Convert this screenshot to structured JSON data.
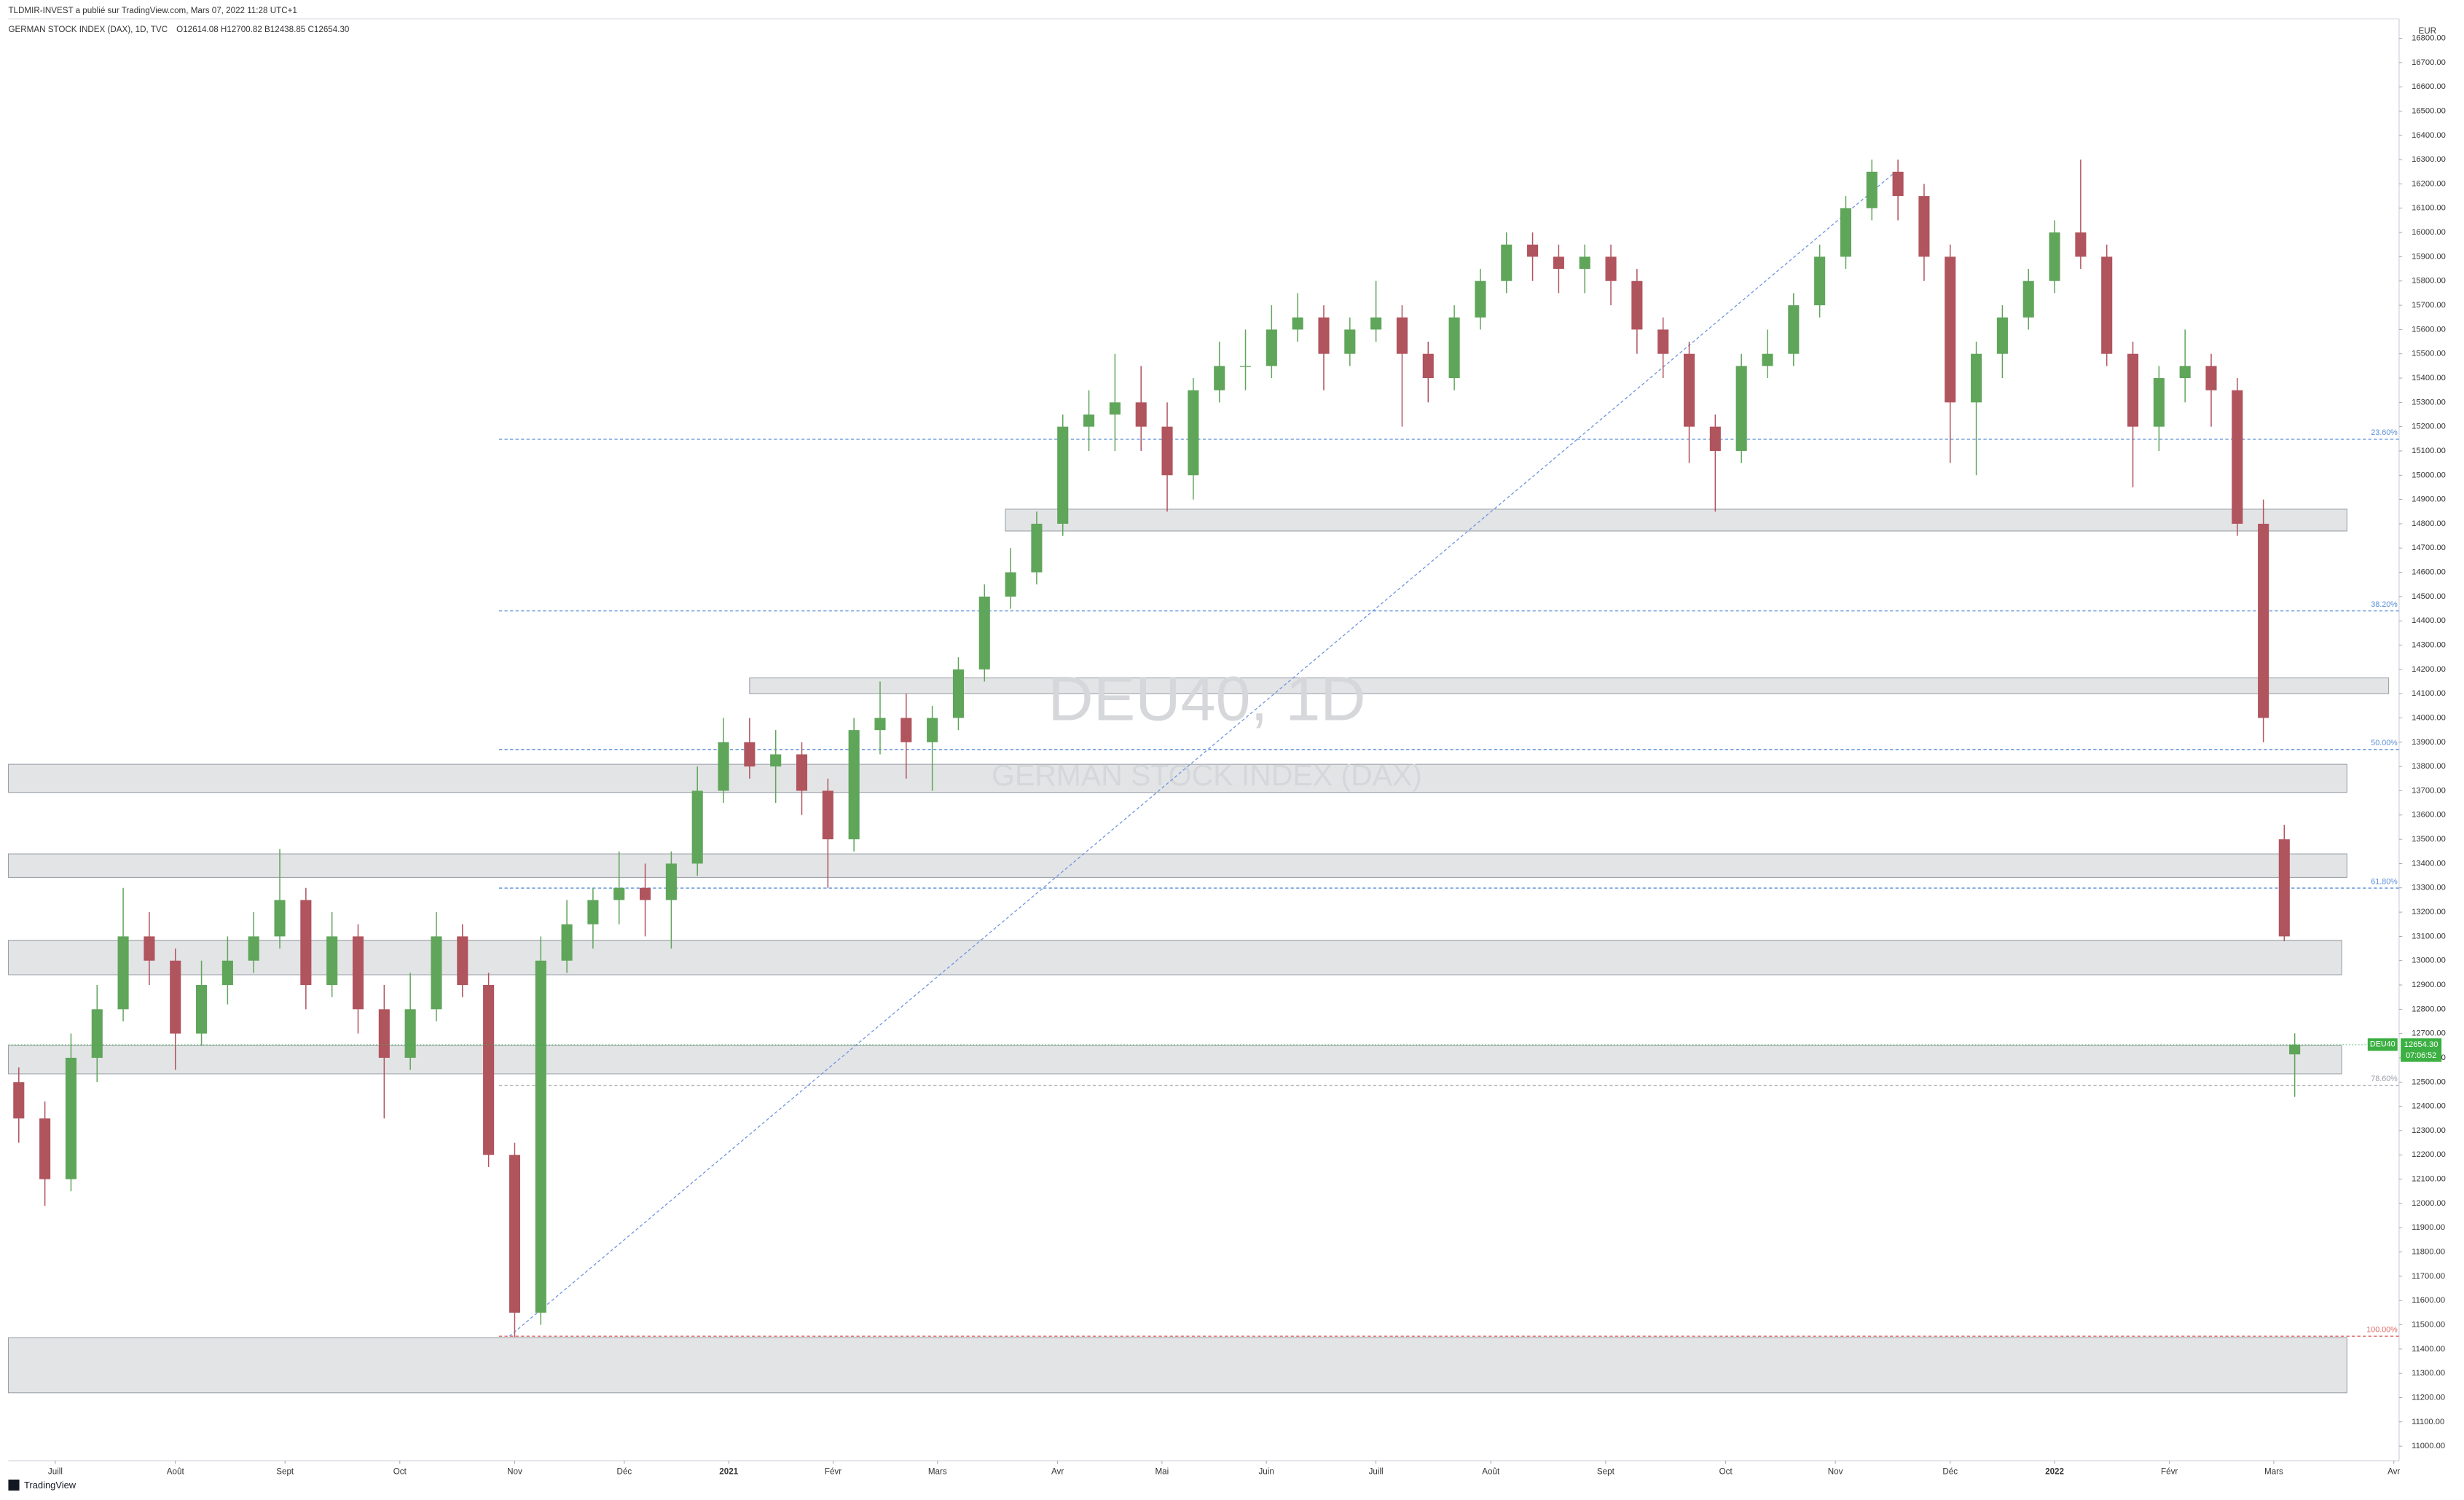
{
  "chart_data": {
    "type": "candlestick",
    "publisher_note": "TLDMIR-INVEST a publié sur TradingView.com, Mars 07, 2022 11:28 UTC+1",
    "title": "GERMAN STOCK INDEX (DAX), 1D, TVC",
    "ohlc_text": "O12614.08 H12700.82 B12438.85 C12654.30",
    "watermark": "DEU40, 1D",
    "watermark_subtitle": "GERMAN STOCK INDEX (DAX)",
    "currency": "EUR",
    "brand": "TradingView",
    "up_color": "#5fa55a",
    "down_color": "#b0545e",
    "zone_color": "#e3e4e6",
    "xlim": [
      0,
      458
    ],
    "ylim": [
      10940,
      16880
    ],
    "xticks": [
      {
        "value": 9,
        "label": "Juill"
      },
      {
        "value": 32,
        "label": "Août"
      },
      {
        "value": 53,
        "label": "Sept"
      },
      {
        "value": 75,
        "label": "Oct"
      },
      {
        "value": 97,
        "label": "Nov"
      },
      {
        "value": 118,
        "label": "Déc"
      },
      {
        "value": 138,
        "label": "2021"
      },
      {
        "value": 158,
        "label": "Févr"
      },
      {
        "value": 178,
        "label": "Mars"
      },
      {
        "value": 201,
        "label": "Avr"
      },
      {
        "value": 221,
        "label": "Mai"
      },
      {
        "value": 241,
        "label": "Juin"
      },
      {
        "value": 262,
        "label": "Juill"
      },
      {
        "value": 284,
        "label": "Août"
      },
      {
        "value": 306,
        "label": "Sept"
      },
      {
        "value": 329,
        "label": "Oct"
      },
      {
        "value": 350,
        "label": "Nov"
      },
      {
        "value": 372,
        "label": "Déc"
      },
      {
        "value": 392,
        "label": "2022"
      },
      {
        "value": 414,
        "label": "Févr"
      },
      {
        "value": 434,
        "label": "Mars"
      },
      {
        "value": 457,
        "label": "Avr"
      }
    ],
    "yticks": [
      {
        "value": 11000,
        "label": "11000.00"
      },
      {
        "value": 11100,
        "label": "11100.00"
      },
      {
        "value": 11200,
        "label": "11200.00"
      },
      {
        "value": 11300,
        "label": "11300.00"
      },
      {
        "value": 11400,
        "label": "11400.00"
      },
      {
        "value": 11500,
        "label": "11500.00"
      },
      {
        "value": 11600,
        "label": "11600.00"
      },
      {
        "value": 11700,
        "label": "11700.00"
      },
      {
        "value": 11800,
        "label": "11800.00"
      },
      {
        "value": 11900,
        "label": "11900.00"
      },
      {
        "value": 12000,
        "label": "12000.00"
      },
      {
        "value": 12100,
        "label": "12100.00"
      },
      {
        "value": 12200,
        "label": "12200.00"
      },
      {
        "value": 12300,
        "label": "12300.00"
      },
      {
        "value": 12400,
        "label": "12400.00"
      },
      {
        "value": 12500,
        "label": "12500.00"
      },
      {
        "value": 12600,
        "label": "12600.00"
      },
      {
        "value": 12700,
        "label": "12700.00"
      },
      {
        "value": 12800,
        "label": "12800.00"
      },
      {
        "value": 12900,
        "label": "12900.00"
      },
      {
        "value": 13000,
        "label": "13000.00"
      },
      {
        "value": 13100,
        "label": "13100.00"
      },
      {
        "value": 13200,
        "label": "13200.00"
      },
      {
        "value": 13300,
        "label": "13300.00"
      },
      {
        "value": 13400,
        "label": "13400.00"
      },
      {
        "value": 13500,
        "label": "13500.00"
      },
      {
        "value": 13600,
        "label": "13600.00"
      },
      {
        "value": 13700,
        "label": "13700.00"
      },
      {
        "value": 13800,
        "label": "13800.00"
      },
      {
        "value": 13900,
        "label": "13900.00"
      },
      {
        "value": 14000,
        "label": "14000.00"
      },
      {
        "value": 14100,
        "label": "14100.00"
      },
      {
        "value": 14200,
        "label": "14200.00"
      },
      {
        "value": 14300,
        "label": "14300.00"
      },
      {
        "value": 14400,
        "label": "14400.00"
      },
      {
        "value": 14500,
        "label": "14500.00"
      },
      {
        "value": 14600,
        "label": "14600.00"
      },
      {
        "value": 14700,
        "label": "14700.00"
      },
      {
        "value": 14800,
        "label": "14800.00"
      },
      {
        "value": 14900,
        "label": "14900.00"
      },
      {
        "value": 15000,
        "label": "15000.00"
      },
      {
        "value": 15100,
        "label": "15100.00"
      },
      {
        "value": 15200,
        "label": "15200.00"
      },
      {
        "value": 15300,
        "label": "15300.00"
      },
      {
        "value": 15400,
        "label": "15400.00"
      },
      {
        "value": 15500,
        "label": "15500.00"
      },
      {
        "value": 15600,
        "label": "15600.00"
      },
      {
        "value": 15700,
        "label": "15700.00"
      },
      {
        "value": 15800,
        "label": "15800.00"
      },
      {
        "value": 15900,
        "label": "15900.00"
      },
      {
        "value": 16000,
        "label": "16000.00"
      },
      {
        "value": 16100,
        "label": "16100.00"
      },
      {
        "value": 16200,
        "label": "16200.00"
      },
      {
        "value": 16300,
        "label": "16300.00"
      },
      {
        "value": 16400,
        "label": "16400.00"
      },
      {
        "value": 16500,
        "label": "16500.00"
      },
      {
        "value": 16600,
        "label": "16600.00"
      },
      {
        "value": 16700,
        "label": "16700.00"
      },
      {
        "value": 16800,
        "label": "16800.00"
      }
    ],
    "x": [
      2,
      7,
      12,
      17,
      22,
      27,
      32,
      37,
      42,
      47,
      52,
      57,
      62,
      67,
      72,
      77,
      82,
      87,
      92,
      97,
      102,
      107,
      112,
      117,
      122,
      127,
      132,
      137,
      142,
      147,
      152,
      157,
      162,
      167,
      172,
      177,
      182,
      187,
      192,
      197,
      202,
      207,
      212,
      217,
      222,
      227,
      232,
      237,
      242,
      247,
      252,
      257,
      262,
      267,
      272,
      277,
      282,
      287,
      292,
      297,
      302,
      307,
      312,
      317,
      322,
      327,
      332,
      337,
      342,
      347,
      352,
      357,
      362,
      367,
      372,
      377,
      382,
      387,
      392,
      397,
      402,
      407,
      412,
      417,
      422,
      427,
      432,
      436,
      438
    ],
    "open": [
      12500,
      12350,
      12100,
      12600,
      12800,
      13100,
      13000,
      12700,
      12900,
      13000,
      13100,
      13250,
      12900,
      13100,
      12800,
      12600,
      12800,
      13100,
      12900,
      12200,
      11550,
      13000,
      13150,
      13250,
      13300,
      13250,
      13400,
      13700,
      13900,
      13800,
      13850,
      13700,
      13500,
      13950,
      14000,
      13900,
      14000,
      14200,
      14500,
      14600,
      14800,
      15200,
      15250,
      15300,
      15200,
      15000,
      15350,
      15450,
      15450,
      15600,
      15650,
      15500,
      15600,
      15650,
      15500,
      15400,
      15650,
      15800,
      15950,
      15900,
      15850,
      15900,
      15800,
      15600,
      15500,
      15200,
      15100,
      15450,
      15500,
      15700,
      15900,
      16100,
      16250,
      16150,
      15900,
      15300,
      15500,
      15650,
      15800,
      16000,
      15900,
      15500,
      15200,
      15400,
      15450,
      15350,
      14800,
      13500,
      12614.08
    ],
    "high": [
      12560,
      12420,
      12700,
      12900,
      13300,
      13200,
      13050,
      13000,
      13100,
      13200,
      13460,
      13300,
      13200,
      13150,
      12900,
      12950,
      13200,
      13150,
      12950,
      12250,
      13100,
      13250,
      13300,
      13450,
      13400,
      13450,
      13800,
      14000,
      14000,
      13950,
      13900,
      13750,
      14000,
      14150,
      14100,
      14050,
      14250,
      14550,
      14700,
      14850,
      15250,
      15350,
      15500,
      15450,
      15300,
      15400,
      15550,
      15600,
      15700,
      15750,
      15700,
      15650,
      15800,
      15700,
      15550,
      15700,
      15850,
      16000,
      16000,
      15950,
      15950,
      15950,
      15850,
      15650,
      15550,
      15250,
      15500,
      15600,
      15750,
      15950,
      16150,
      16300,
      16300,
      16200,
      15950,
      15550,
      15700,
      15850,
      16050,
      16300,
      15950,
      15550,
      15450,
      15600,
      15500,
      15400,
      14900,
      13560,
      12700.82
    ],
    "low": [
      12250,
      11990,
      12050,
      12500,
      12750,
      12900,
      12550,
      12650,
      12820,
      12950,
      13050,
      12800,
      12850,
      12700,
      12350,
      12550,
      12750,
      12850,
      12150,
      11450,
      11500,
      12950,
      13050,
      13150,
      13100,
      13050,
      13350,
      13650,
      13750,
      13650,
      13600,
      13300,
      13450,
      13850,
      13750,
      13700,
      13950,
      14150,
      14450,
      14550,
      14750,
      15100,
      15100,
      15100,
      14850,
      14900,
      15300,
      15350,
      15400,
      15550,
      15350,
      15450,
      15550,
      15200,
      15300,
      15350,
      15600,
      15750,
      15800,
      15750,
      15750,
      15700,
      15500,
      15400,
      15050,
      14850,
      15050,
      15400,
      15450,
      15650,
      15850,
      16050,
      16050,
      15800,
      15050,
      15000,
      15400,
      15600,
      15750,
      15850,
      15450,
      14950,
      15100,
      15300,
      15200,
      14750,
      13900,
      13080,
      12438.85
    ],
    "close": [
      12350,
      12100,
      12600,
      12800,
      13100,
      13000,
      12700,
      12900,
      13000,
      13100,
      13250,
      12900,
      13100,
      12800,
      12600,
      12800,
      13100,
      12900,
      12200,
      11550,
      13000,
      13150,
      13250,
      13300,
      13250,
      13400,
      13700,
      13900,
      13800,
      13850,
      13700,
      13500,
      13950,
      14000,
      13900,
      14000,
      14200,
      14500,
      14600,
      14800,
      15200,
      15250,
      15300,
      15200,
      15000,
      15350,
      15450,
      15450,
      15600,
      15650,
      15500,
      15600,
      15650,
      15500,
      15400,
      15650,
      15800,
      15950,
      15900,
      15850,
      15900,
      15800,
      15600,
      15500,
      15200,
      15100,
      15450,
      15500,
      15700,
      15900,
      16100,
      16250,
      16150,
      15900,
      15300,
      15500,
      15650,
      15800,
      16000,
      15900,
      15500,
      15200,
      15400,
      15450,
      15350,
      14800,
      14000,
      13100,
      12654.3
    ],
    "zones": [
      {
        "start": 191,
        "end": 448,
        "low": 14770,
        "high": 14860
      },
      {
        "start": 142,
        "end": 456,
        "low": 14100,
        "high": 14165
      },
      {
        "start": 0,
        "end": 448,
        "low": 13693,
        "high": 13809
      },
      {
        "start": 0,
        "end": 448,
        "low": 13343,
        "high": 13440
      },
      {
        "start": 0,
        "end": 447,
        "low": 12942,
        "high": 13084
      },
      {
        "start": 0,
        "end": 447,
        "low": 12534,
        "high": 12650
      },
      {
        "start": 0,
        "end": 448,
        "low": 11220,
        "high": 11447
      }
    ],
    "fib_start": 94,
    "fib_levels": [
      {
        "price": 15148,
        "label": "23.60%",
        "color": "#5b8fd9"
      },
      {
        "price": 14441,
        "label": "38.20%",
        "color": "#5b8fd9"
      },
      {
        "price": 13870,
        "label": "50.00%",
        "color": "#5b8fd9"
      },
      {
        "price": 13299,
        "label": "61.80%",
        "color": "#5b8fd9"
      },
      {
        "price": 12486,
        "label": "78.60%",
        "color": "#9a9ea6"
      },
      {
        "price": 11453,
        "label": "100.00%",
        "color": "#e06666"
      }
    ],
    "trendline": {
      "x": [
        96,
        361
      ],
      "y": [
        11453,
        16240
      ],
      "color": "#6e95e0"
    },
    "last_price": {
      "symbol": "DEU40",
      "value": 12654.3,
      "value_label": "12654.30",
      "countdown": "07:06:52",
      "color": "#3cb043"
    }
  }
}
